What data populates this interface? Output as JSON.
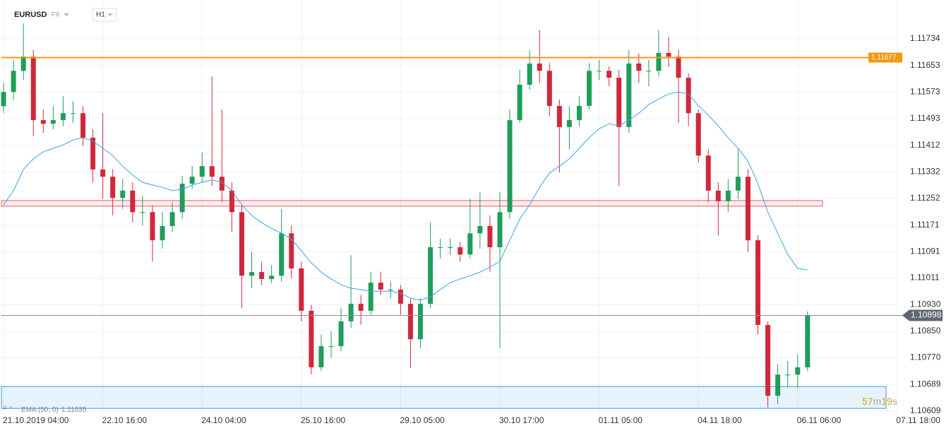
{
  "header": {
    "symbol": "EURUSD",
    "market": "FX",
    "timeframe": "H1"
  },
  "chart_data": {
    "type": "candlestick",
    "x": [
      0,
      1,
      2,
      3,
      4,
      5,
      6,
      7,
      8,
      9,
      10,
      11,
      12,
      13,
      14,
      15,
      16,
      17,
      18,
      19,
      20,
      21,
      22,
      23,
      24,
      25,
      26,
      27,
      28,
      29,
      30,
      31,
      32,
      33,
      34,
      35,
      36,
      37,
      38,
      39,
      40,
      41,
      42,
      43,
      44,
      45,
      46,
      47,
      48,
      49,
      50,
      51,
      52,
      53,
      54,
      55,
      56,
      57,
      58,
      59,
      60,
      61,
      62,
      63,
      64,
      65,
      66,
      67,
      68,
      69,
      70,
      71,
      72,
      73,
      74,
      75,
      76,
      77,
      78,
      79,
      80,
      81
    ],
    "open": [
      1.1153,
      1.11573,
      1.11637,
      1.1168,
      1.11488,
      1.11477,
      1.11488,
      1.11509,
      1.11509,
      1.11435,
      1.11339,
      1.11317,
      1.11253,
      1.11275,
      1.1121,
      1.1121,
      1.11125,
      1.11168,
      1.1121,
      1.11296,
      1.11317,
      1.11349,
      1.11317,
      1.11275,
      1.1121,
      1.11018,
      1.11029,
      1.11008,
      1.11018,
      1.11146,
      1.1104,
      1.10912,
      1.10741,
      1.10805,
      1.10805,
      1.1088,
      1.10933,
      1.10912,
      1.10997,
      1.10976,
      1.10976,
      1.10933,
      1.10826,
      1.10933,
      1.11104,
      1.11104,
      1.11104,
      1.11082,
      1.11146,
      1.11168,
      1.11104,
      1.1121,
      1.11488,
      1.11595,
      1.11659,
      1.11637,
      1.11531,
      1.11467,
      1.11488,
      1.11531,
      1.11637,
      1.11637,
      1.11616,
      1.11467,
      1.11659,
      1.11637,
      1.11637,
      1.11691,
      1.1168,
      1.11616,
      1.11509,
      1.11381,
      1.11275,
      1.11243,
      1.11275,
      1.11317,
      1.11125,
      1.10869,
      1.10655,
      1.10719,
      1.10719,
      1.10741
    ],
    "high": [
      1.116,
      1.1167,
      1.1178,
      1.117,
      1.1152,
      1.1153,
      1.1156,
      1.11545,
      1.1153,
      1.1146,
      1.1151,
      1.1134,
      1.1131,
      1.113,
      1.1126,
      1.1123,
      1.1121,
      1.1124,
      1.1132,
      1.1135,
      1.1139,
      1.1162,
      1.1152,
      1.113,
      1.1123,
      1.1109,
      1.1106,
      1.1105,
      1.1122,
      1.1117,
      1.1106,
      1.1093,
      1.1084,
      1.1085,
      1.1092,
      1.1108,
      1.1096,
      1.1103,
      1.1103,
      1.11,
      1.1099,
      1.1095,
      1.1095,
      1.1118,
      1.1113,
      1.1113,
      1.1112,
      1.1125,
      1.1127,
      1.112,
      1.1127,
      1.1152,
      1.1164,
      1.117,
      1.1176,
      1.1166,
      1.1155,
      1.1153,
      1.1156,
      1.1166,
      1.1167,
      1.1165,
      1.1164,
      1.117,
      1.1169,
      1.1167,
      1.1176,
      1.1174,
      1.117,
      1.1163,
      1.1152,
      1.114,
      1.113,
      1.1131,
      1.114,
      1.1134,
      1.1114,
      1.1088,
      1.1075,
      1.1076,
      1.1078,
      1.1091
    ],
    "low": [
      1.1151,
      1.1155,
      1.1161,
      1.1144,
      1.1145,
      1.1146,
      1.1147,
      1.1148,
      1.1141,
      1.113,
      1.1125,
      1.112,
      1.1122,
      1.1118,
      1.1117,
      1.1106,
      1.111,
      1.1115,
      1.1119,
      1.1128,
      1.113,
      1.1129,
      1.1124,
      1.1115,
      1.1092,
      1.1098,
      1.1099,
      1.10995,
      1.11,
      1.1101,
      1.1088,
      1.1072,
      1.1073,
      1.1077,
      1.1079,
      1.1086,
      1.1087,
      1.109,
      1.1096,
      1.1095,
      1.109,
      1.1074,
      1.108,
      1.1092,
      1.1107,
      1.1108,
      1.1106,
      1.1107,
      1.111,
      1.1103,
      1.108,
      1.1119,
      1.1148,
      1.1158,
      1.116,
      1.115,
      1.1133,
      1.114,
      1.1147,
      1.1152,
      1.1161,
      1.1159,
      1.1129,
      1.1145,
      1.116,
      1.1159,
      1.1162,
      1.1165,
      1.1148,
      1.1147,
      1.1136,
      1.1124,
      1.1114,
      1.1121,
      1.1125,
      1.1109,
      1.1084,
      1.1062,
      1.1063,
      1.1068,
      1.1068,
      1.1073
    ],
    "close": [
      1.11573,
      1.11637,
      1.1168,
      1.11488,
      1.11477,
      1.11488,
      1.11509,
      1.11509,
      1.11435,
      1.11339,
      1.11317,
      1.11253,
      1.11275,
      1.1121,
      1.1121,
      1.11125,
      1.11168,
      1.1121,
      1.11296,
      1.11317,
      1.11349,
      1.11317,
      1.11275,
      1.1121,
      1.11018,
      1.11029,
      1.11008,
      1.11018,
      1.11146,
      1.1104,
      1.10912,
      1.10741,
      1.10805,
      1.10805,
      1.1088,
      1.10933,
      1.10912,
      1.10997,
      1.10976,
      1.10976,
      1.10933,
      1.10826,
      1.10933,
      1.11104,
      1.11104,
      1.11104,
      1.11082,
      1.11146,
      1.11168,
      1.11104,
      1.1121,
      1.11488,
      1.11595,
      1.11659,
      1.11637,
      1.11531,
      1.11467,
      1.11488,
      1.11531,
      1.11637,
      1.11637,
      1.11616,
      1.11467,
      1.11659,
      1.11637,
      1.11637,
      1.11691,
      1.1168,
      1.11616,
      1.11509,
      1.11381,
      1.11275,
      1.11243,
      1.11275,
      1.11317,
      1.11125,
      1.10869,
      1.10655,
      1.10719,
      1.10719,
      1.10741,
      1.10898
    ],
    "up_color": "#1e9e5a",
    "down_color": "#d0283b",
    "series": [
      {
        "name": "EMA (50, 0)",
        "color": "#3aa3e3",
        "values": [
          1.11232,
          1.11275,
          1.11339,
          1.11371,
          1.11392,
          1.11403,
          1.11413,
          1.11428,
          1.11435,
          1.11424,
          1.11403,
          1.11381,
          1.11349,
          1.11322,
          1.113,
          1.11292,
          1.11285,
          1.11275,
          1.11279,
          1.11292,
          1.113,
          1.11307,
          1.113,
          1.11275,
          1.11232,
          1.112,
          1.11178,
          1.11161,
          1.11146,
          1.11129,
          1.11093,
          1.11057,
          1.11029,
          1.11008,
          1.10991,
          1.1098,
          1.10976,
          1.10971,
          1.10971,
          1.10971,
          1.10965,
          1.1095,
          1.10944,
          1.10954,
          1.10976,
          1.10997,
          1.11008,
          1.11018,
          1.11029,
          1.11044,
          1.11061,
          1.11125,
          1.11189,
          1.11232,
          1.11285,
          1.11328,
          1.11349,
          1.11371,
          1.11403,
          1.11435,
          1.11462,
          1.11477,
          1.11471,
          1.11488,
          1.11509,
          1.11535,
          1.11552,
          1.11567,
          1.11573,
          1.11567,
          1.11531,
          1.11503,
          1.11471,
          1.11435,
          1.11403,
          1.11364,
          1.11296,
          1.1121,
          1.11146,
          1.11082,
          1.1104,
          1.11035
        ]
      }
    ],
    "hlines": [
      {
        "value": 1.11677,
        "color": "#f39712"
      },
      {
        "value": 1.10898,
        "color": "#8a8f96"
      }
    ],
    "zones": [
      {
        "low": 1.11228,
        "high": 1.11245,
        "color": "#e35d6a"
      },
      {
        "low": 1.10617,
        "high": 1.10683,
        "color": "#3a9ad9"
      }
    ],
    "xlim": [
      -0.36,
      90.33
    ],
    "xticks": [
      {
        "value": 0,
        "label": "21.10.2019 04:00"
      },
      {
        "value": 10,
        "label": "22.10 16:00"
      },
      {
        "value": 20,
        "label": "24.10 04:00"
      },
      {
        "value": 30,
        "label": "25.10 16:00"
      },
      {
        "value": 40,
        "label": "29.10 05:00"
      },
      {
        "value": 50,
        "label": "30.10 17:00"
      },
      {
        "value": 60,
        "label": "01.11 05:00"
      },
      {
        "value": 70,
        "label": "04.11 18:00"
      },
      {
        "value": 80,
        "label": "06.11 06:00"
      },
      {
        "value": 90,
        "label": "07.11 18:00"
      }
    ],
    "ylim": [
      1.10596,
      1.11851
    ],
    "yticks": [
      1.11734,
      1.11653,
      1.11573,
      1.11493,
      1.11412,
      1.11332,
      1.11252,
      1.11171,
      1.11091,
      1.11011,
      {
        "value": 1.1093,
        "label": "1.10930"
      },
      {
        "value": 1.1085,
        "label": "1.10850"
      },
      {
        "value": 1.1077,
        "label": "1.10770"
      },
      1.10689,
      1.10609
    ],
    "grid": true,
    "timer": [
      "57",
      "m",
      "19",
      "s"
    ]
  }
}
